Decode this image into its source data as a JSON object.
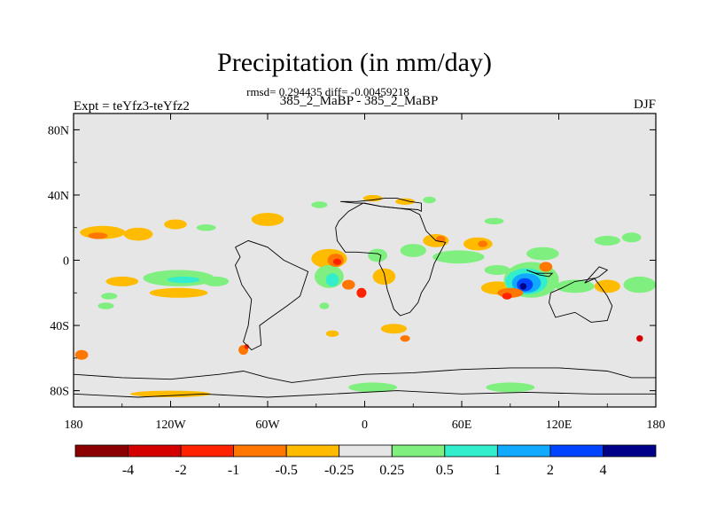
{
  "chart_data": {
    "type": "heatmap",
    "subtype": "filled-contour-map",
    "title": "Precipitation (in mm/day)",
    "stats_line": "rmsd= 0.294435 diff= -0.00459218",
    "subtitle": "385_2_MaBP - 385_2_MaBP",
    "left_label": "Expt = teYfz3-teYfz2",
    "right_label": "DJF",
    "x_range": [
      -180,
      180
    ],
    "y_range": [
      -90,
      90
    ],
    "x_ticks": [
      {
        "value": -180,
        "label": "180"
      },
      {
        "value": -120,
        "label": "120W"
      },
      {
        "value": -60,
        "label": "60W"
      },
      {
        "value": 0,
        "label": "0"
      },
      {
        "value": 60,
        "label": "60E"
      },
      {
        "value": 120,
        "label": "120E"
      },
      {
        "value": 180,
        "label": "180"
      }
    ],
    "y_ticks": [
      {
        "value": 80,
        "label": "80N"
      },
      {
        "value": 40,
        "label": "40N"
      },
      {
        "value": 0,
        "label": "0"
      },
      {
        "value": -40,
        "label": "40S"
      },
      {
        "value": -80,
        "label": "80S"
      }
    ],
    "colorbar": {
      "colors": [
        "#8b0000",
        "#d40000",
        "#ff2200",
        "#ff7700",
        "#ffbb00",
        "#e6e6e6",
        "#7fef7f",
        "#33eecc",
        "#11aaff",
        "#0044ff",
        "#000088"
      ],
      "tick_labels": [
        "-4",
        "-2",
        "-1",
        "-0.5",
        "-0.25",
        "0.25",
        "0.5",
        "1",
        "2",
        "4"
      ]
    },
    "background_color": "#e6e6e6",
    "anomaly_regions": [
      {
        "lon": -162,
        "lat": 17,
        "rlon": 14,
        "rlat": 4,
        "level": "-0.25"
      },
      {
        "lon": -165,
        "lat": 15,
        "rlon": 6,
        "rlat": 2,
        "level": "-0.5"
      },
      {
        "lon": -140,
        "lat": 16,
        "rlon": 9,
        "rlat": 4,
        "level": "-0.25"
      },
      {
        "lon": -117,
        "lat": 22,
        "rlon": 7,
        "rlat": 3,
        "level": "-0.25"
      },
      {
        "lon": -98,
        "lat": 20,
        "rlon": 6,
        "rlat": 2,
        "level": "0.25"
      },
      {
        "lon": -60,
        "lat": 25,
        "rlon": 10,
        "rlat": 4,
        "level": "-0.25"
      },
      {
        "lon": -150,
        "lat": -13,
        "rlon": 10,
        "rlat": 3,
        "level": "-0.25"
      },
      {
        "lon": -115,
        "lat": -11,
        "rlon": 22,
        "rlat": 5,
        "level": "0.25"
      },
      {
        "lon": -112,
        "lat": -12,
        "rlon": 10,
        "rlat": 2,
        "level": "0.5"
      },
      {
        "lon": -92,
        "lat": -13,
        "rlon": 8,
        "rlat": 3,
        "level": "0.25"
      },
      {
        "lon": -115,
        "lat": -20,
        "rlon": 18,
        "rlat": 3,
        "level": "-0.25"
      },
      {
        "lon": -158,
        "lat": -22,
        "rlon": 5,
        "rlat": 2,
        "level": "0.25"
      },
      {
        "lon": -22,
        "lat": 1,
        "rlon": 11,
        "rlat": 6,
        "level": "-0.25"
      },
      {
        "lon": -22,
        "lat": -10,
        "rlon": 9,
        "rlat": 7,
        "level": "0.25"
      },
      {
        "lon": -20,
        "lat": -12,
        "rlon": 4,
        "rlat": 4,
        "level": "0.5"
      },
      {
        "lon": -18,
        "lat": 0,
        "rlon": 5,
        "rlat": 4,
        "level": "-0.5"
      },
      {
        "lon": -17,
        "lat": -1,
        "rlon": 2.5,
        "rlat": 2,
        "level": "-1"
      },
      {
        "lon": -10,
        "lat": -15,
        "rlon": 4,
        "rlat": 3,
        "level": "-0.5"
      },
      {
        "lon": -2,
        "lat": -20,
        "rlon": 3,
        "rlat": 3,
        "level": "-1"
      },
      {
        "lon": 8,
        "lat": 3,
        "rlon": 6,
        "rlat": 4,
        "level": "0.25"
      },
      {
        "lon": 12,
        "lat": -10,
        "rlon": 7,
        "rlat": 5,
        "level": "-0.25"
      },
      {
        "lon": 30,
        "lat": 6,
        "rlon": 8,
        "rlat": 4,
        "level": "0.25"
      },
      {
        "lon": 44,
        "lat": 12,
        "rlon": 8,
        "rlat": 4,
        "level": "-0.25"
      },
      {
        "lon": 47,
        "lat": 13,
        "rlon": 3,
        "rlat": 2,
        "level": "-0.5"
      },
      {
        "lon": 70,
        "lat": 10,
        "rlon": 9,
        "rlat": 4,
        "level": "-0.25"
      },
      {
        "lon": 73,
        "lat": 10,
        "rlon": 3,
        "rlat": 2,
        "level": "-0.5"
      },
      {
        "lon": 58,
        "lat": 2,
        "rlon": 16,
        "rlat": 4,
        "level": "0.25"
      },
      {
        "lon": 110,
        "lat": 4,
        "rlon": 10,
        "rlat": 4,
        "level": "0.25"
      },
      {
        "lon": 82,
        "lat": -6,
        "rlon": 8,
        "rlat": 3,
        "level": "0.25"
      },
      {
        "lon": 82,
        "lat": -17,
        "rlon": 10,
        "rlat": 4,
        "level": "-0.25"
      },
      {
        "lon": 103,
        "lat": -12,
        "rlon": 17,
        "rlat": 11,
        "level": "0.25"
      },
      {
        "lon": 100,
        "lat": -13,
        "rlon": 13,
        "rlat": 8,
        "level": "0.5"
      },
      {
        "lon": 100,
        "lat": -14,
        "rlon": 9,
        "rlat": 6,
        "level": "1"
      },
      {
        "lon": 99,
        "lat": -15,
        "rlon": 5,
        "rlat": 4,
        "level": "2"
      },
      {
        "lon": 98,
        "lat": -16,
        "rlon": 2,
        "rlat": 2,
        "level": "4"
      },
      {
        "lon": 90,
        "lat": -20,
        "rlon": 8,
        "rlat": 3,
        "level": "-0.5"
      },
      {
        "lon": 88,
        "lat": -22,
        "rlon": 3,
        "rlat": 2,
        "level": "-1"
      },
      {
        "lon": 112,
        "lat": -4,
        "rlon": 4,
        "rlat": 3,
        "level": "-0.5"
      },
      {
        "lon": 130,
        "lat": -16,
        "rlon": 12,
        "rlat": 4,
        "level": "0.25"
      },
      {
        "lon": 150,
        "lat": -16,
        "rlon": 8,
        "rlat": 4,
        "level": "-0.25"
      },
      {
        "lon": 170,
        "lat": -15,
        "rlon": 10,
        "rlat": 5,
        "level": "0.25"
      },
      {
        "lon": 150,
        "lat": 12,
        "rlon": 8,
        "rlat": 3,
        "level": "0.25"
      },
      {
        "lon": 165,
        "lat": 14,
        "rlon": 6,
        "rlat": 3,
        "level": "0.25"
      },
      {
        "lon": -28,
        "lat": 34,
        "rlon": 5,
        "rlat": 2,
        "level": "0.25"
      },
      {
        "lon": 5,
        "lat": 38,
        "rlon": 6,
        "rlat": 2,
        "level": "-0.25"
      },
      {
        "lon": 25,
        "lat": 36,
        "rlon": 6,
        "rlat": 2,
        "level": "-0.25"
      },
      {
        "lon": 40,
        "lat": 37,
        "rlon": 4,
        "rlat": 2,
        "level": "0.25"
      },
      {
        "lon": 80,
        "lat": 24,
        "rlon": 6,
        "rlat": 2,
        "level": "0.25"
      },
      {
        "lon": 18,
        "lat": -42,
        "rlon": 8,
        "rlat": 3,
        "level": "-0.25"
      },
      {
        "lon": 25,
        "lat": -48,
        "rlon": 3,
        "rlat": 2,
        "level": "-0.5"
      },
      {
        "lon": -20,
        "lat": -45,
        "rlon": 4,
        "rlat": 2,
        "level": "-0.25"
      },
      {
        "lon": -175,
        "lat": -58,
        "rlon": 4,
        "rlat": 3,
        "level": "-0.5"
      },
      {
        "lon": -75,
        "lat": -55,
        "rlon": 3,
        "rlat": 3,
        "level": "-0.5"
      },
      {
        "lon": -73,
        "lat": -53,
        "rlon": 1.5,
        "rlat": 1.5,
        "level": "-1"
      },
      {
        "lon": 170,
        "lat": -48,
        "rlon": 2,
        "rlat": 2,
        "level": "-2"
      },
      {
        "lon": 5,
        "lat": -78,
        "rlon": 15,
        "rlat": 3,
        "level": "0.25"
      },
      {
        "lon": 90,
        "lat": -78,
        "rlon": 15,
        "rlat": 3,
        "level": "0.25"
      },
      {
        "lon": -120,
        "lat": -82,
        "rlon": 25,
        "rlat": 2,
        "level": "-0.25"
      },
      {
        "lon": -25,
        "lat": -28,
        "rlon": 3,
        "rlat": 2,
        "level": "0.25"
      },
      {
        "lon": -160,
        "lat": -28,
        "rlon": 5,
        "rlat": 2,
        "level": "0.25"
      }
    ],
    "land_outlines": [
      [
        [
          -15,
          36
        ],
        [
          -5,
          36
        ],
        [
          5,
          37
        ],
        [
          12,
          38
        ],
        [
          20,
          38
        ],
        [
          28,
          36
        ],
        [
          35,
          35
        ],
        [
          35,
          30
        ],
        [
          33,
          31
        ],
        [
          20,
          32
        ],
        [
          10,
          33
        ],
        [
          0,
          35
        ],
        [
          -6,
          35
        ],
        [
          -15,
          36
        ]
      ],
      [
        [
          -18,
          20
        ],
        [
          -17,
          12
        ],
        [
          -12,
          5
        ],
        [
          -5,
          5
        ],
        [
          8,
          4
        ],
        [
          10,
          3
        ],
        [
          9,
          -2
        ],
        [
          12,
          -8
        ],
        [
          14,
          -18
        ],
        [
          18,
          -30
        ],
        [
          22,
          -34
        ],
        [
          28,
          -32
        ],
        [
          33,
          -26
        ],
        [
          35,
          -20
        ],
        [
          40,
          -12
        ],
        [
          43,
          -2
        ],
        [
          50,
          11
        ],
        [
          44,
          12
        ],
        [
          38,
          18
        ],
        [
          34,
          28
        ],
        [
          28,
          31
        ],
        [
          20,
          32
        ],
        [
          10,
          33
        ],
        [
          -1,
          35
        ],
        [
          -10,
          30
        ],
        [
          -16,
          24
        ],
        [
          -18,
          20
        ]
      ],
      [
        [
          115,
          -20
        ],
        [
          122,
          -17
        ],
        [
          130,
          -13
        ],
        [
          137,
          -12
        ],
        [
          142,
          -11
        ],
        [
          145,
          -15
        ],
        [
          150,
          -22
        ],
        [
          153,
          -28
        ],
        [
          150,
          -37
        ],
        [
          140,
          -38
        ],
        [
          130,
          -32
        ],
        [
          118,
          -35
        ],
        [
          114,
          -26
        ],
        [
          115,
          -20
        ]
      ],
      [
        [
          100,
          -6
        ],
        [
          106,
          -8
        ],
        [
          112,
          -8
        ],
        [
          116,
          -8
        ],
        [
          114,
          -10
        ],
        [
          108,
          -9
        ],
        [
          100,
          -6
        ]
      ],
      [
        [
          -80,
          8
        ],
        [
          -77,
          2
        ],
        [
          -80,
          -3
        ],
        [
          -76,
          -15
        ],
        [
          -70,
          -24
        ],
        [
          -72,
          -40
        ],
        [
          -75,
          -50
        ],
        [
          -70,
          -55
        ],
        [
          -64,
          -52
        ],
        [
          -65,
          -40
        ],
        [
          -58,
          -35
        ],
        [
          -48,
          -28
        ],
        [
          -40,
          -22
        ],
        [
          -35,
          -7
        ],
        [
          -50,
          0
        ],
        [
          -60,
          8
        ],
        [
          -72,
          12
        ],
        [
          -80,
          8
        ]
      ],
      [
        [
          -180,
          -70
        ],
        [
          -150,
          -72
        ],
        [
          -120,
          -73
        ],
        [
          -90,
          -70
        ],
        [
          -75,
          -68
        ],
        [
          -60,
          -72
        ],
        [
          -45,
          -75
        ],
        [
          -20,
          -72
        ],
        [
          0,
          -70
        ],
        [
          30,
          -69
        ],
        [
          60,
          -67
        ],
        [
          90,
          -66
        ],
        [
          120,
          -66
        ],
        [
          150,
          -68
        ],
        [
          165,
          -72
        ],
        [
          180,
          -72
        ]
      ],
      [
        [
          -180,
          -82
        ],
        [
          -140,
          -84
        ],
        [
          -100,
          -82
        ],
        [
          -60,
          -84
        ],
        [
          -20,
          -82
        ],
        [
          20,
          -80
        ],
        [
          60,
          -82
        ],
        [
          100,
          -81
        ],
        [
          140,
          -82
        ],
        [
          180,
          -82
        ]
      ],
      [
        [
          136,
          -14
        ],
        [
          145,
          -4
        ],
        [
          150,
          -6
        ],
        [
          145,
          -10
        ],
        [
          136,
          -14
        ]
      ]
    ]
  }
}
